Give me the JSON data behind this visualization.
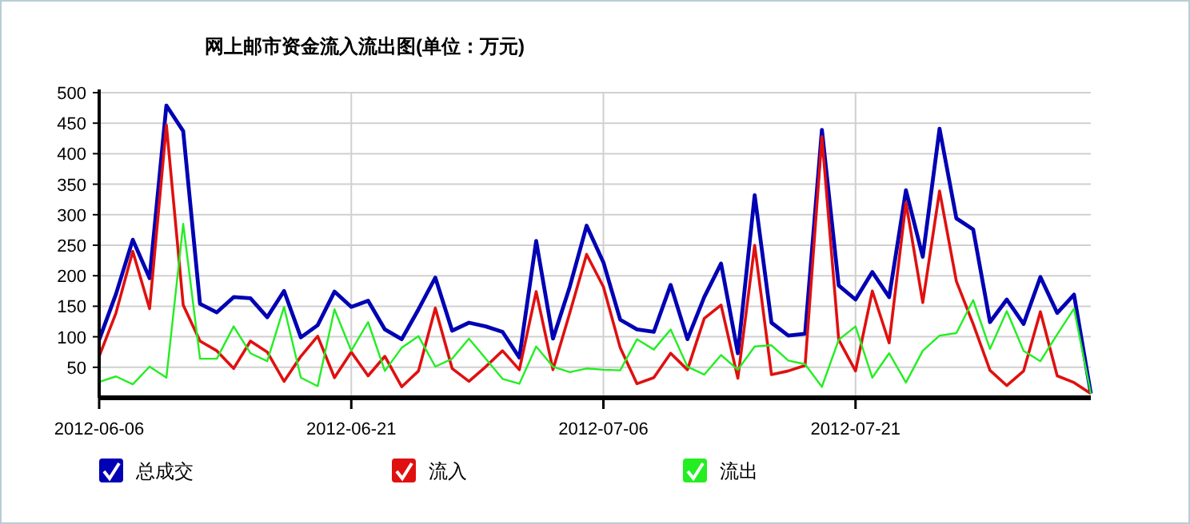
{
  "chart_data": {
    "type": "line",
    "title": "网上邮市资金流入流出图(单位：万元)",
    "x": [
      "2012-06-06",
      "2012-06-07",
      "2012-06-08",
      "2012-06-09",
      "2012-06-10",
      "2012-06-11",
      "2012-06-12",
      "2012-06-13",
      "2012-06-14",
      "2012-06-15",
      "2012-06-16",
      "2012-06-17",
      "2012-06-18",
      "2012-06-19",
      "2012-06-20",
      "2012-06-21",
      "2012-06-22",
      "2012-06-23",
      "2012-06-24",
      "2012-06-25",
      "2012-06-26",
      "2012-06-27",
      "2012-06-28",
      "2012-06-29",
      "2012-06-30",
      "2012-07-01",
      "2012-07-02",
      "2012-07-03",
      "2012-07-04",
      "2012-07-05",
      "2012-07-06",
      "2012-07-07",
      "2012-07-08",
      "2012-07-09",
      "2012-07-10",
      "2012-07-11",
      "2012-07-12",
      "2012-07-13",
      "2012-07-14",
      "2012-07-15",
      "2012-07-16",
      "2012-07-17",
      "2012-07-18",
      "2012-07-19",
      "2012-07-20",
      "2012-07-21",
      "2012-07-22",
      "2012-07-23",
      "2012-07-24",
      "2012-07-25",
      "2012-07-26",
      "2012-07-27",
      "2012-07-28",
      "2012-07-29",
      "2012-07-30",
      "2012-07-31",
      "2012-08-01",
      "2012-08-02",
      "2012-08-03",
      "2012-08-04"
    ],
    "series": [
      {
        "name": "总成交",
        "color": "#0000b4",
        "values": [
          95,
          170,
          259,
          196,
          479,
          437,
          154,
          140,
          165,
          163,
          132,
          175,
          99,
          119,
          174,
          149,
          159,
          112,
          96,
          145,
          197,
          110,
          123,
          117,
          108,
          66,
          257,
          97,
          182,
          282,
          222,
          128,
          112,
          108,
          185,
          96,
          165,
          220,
          73,
          332,
          123,
          102,
          105,
          439,
          184,
          161,
          206,
          165,
          340,
          231,
          441,
          294,
          276,
          124,
          161,
          121,
          198,
          139,
          169,
          7
        ]
      },
      {
        "name": "流入",
        "color": "#e01010",
        "values": [
          68,
          139,
          240,
          146,
          447,
          152,
          93,
          77,
          48,
          93,
          75,
          27,
          68,
          101,
          33,
          75,
          36,
          68,
          18,
          44,
          147,
          48,
          27,
          51,
          77,
          46,
          174,
          46,
          139,
          235,
          182,
          82,
          23,
          33,
          73,
          46,
          130,
          152,
          32,
          250,
          38,
          44,
          53,
          428,
          95,
          44,
          175,
          90,
          320,
          156,
          339,
          191,
          121,
          45,
          20,
          44,
          141,
          36,
          25,
          7
        ]
      },
      {
        "name": "流出",
        "color": "#22ee22",
        "values": [
          26,
          35,
          22,
          51,
          33,
          285,
          64,
          64,
          117,
          73,
          60,
          149,
          33,
          19,
          145,
          77,
          124,
          44,
          82,
          101,
          51,
          64,
          97,
          64,
          31,
          23,
          84,
          51,
          42,
          48,
          46,
          45,
          96,
          79,
          112,
          51,
          38,
          70,
          46,
          84,
          86,
          61,
          55,
          18,
          95,
          117,
          33,
          73,
          25,
          77,
          102,
          106,
          160,
          80,
          142,
          77,
          60,
          104,
          146,
          7
        ]
      }
    ],
    "xlim": [
      "2012-06-06",
      "2012-08-04"
    ],
    "xticks": [
      "2012-06-06",
      "2012-06-21",
      "2012-07-06",
      "2012-07-21"
    ],
    "ylim": [
      0,
      500
    ],
    "yticks": [
      50,
      100,
      150,
      200,
      250,
      300,
      350,
      400,
      450,
      500
    ],
    "grid": true,
    "legend": "bottom"
  }
}
